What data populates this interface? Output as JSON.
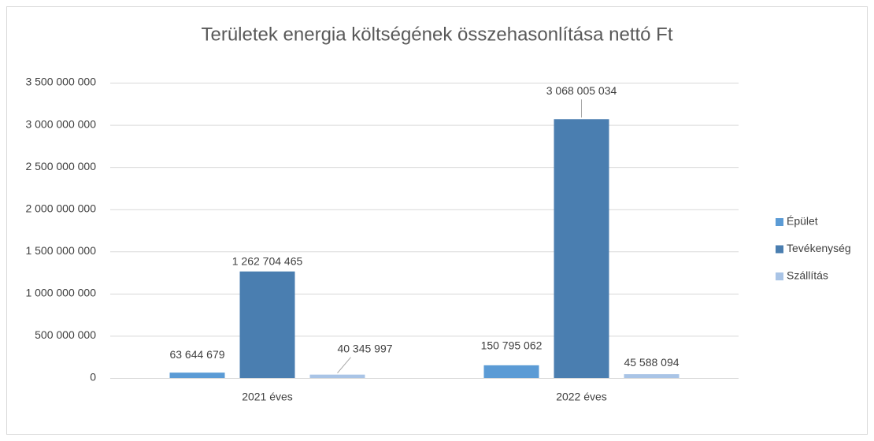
{
  "chart_data": {
    "type": "bar",
    "title": "Területek energia költségének összehasonlítása nettó Ft",
    "categories": [
      "2021 éves",
      "2022 éves"
    ],
    "series": [
      {
        "name": "Épület",
        "color": "#5b9bd5",
        "values": [
          63644679,
          150795062
        ],
        "value_labels": [
          "63 644 679",
          "150 795 062"
        ]
      },
      {
        "name": "Tevékenység",
        "color": "#4a7eb0",
        "values": [
          1262704465,
          3068005034
        ],
        "value_labels": [
          "1 262 704 465",
          "3 068 005 034"
        ]
      },
      {
        "name": "Szállítás",
        "color": "#a9c4e6",
        "values": [
          40345997,
          45588094
        ],
        "value_labels": [
          "40 345 997",
          "45 588 094"
        ]
      }
    ],
    "ylim": [
      0,
      3500000000
    ],
    "yticks": [
      {
        "value": 0,
        "label": "0"
      },
      {
        "value": 500000000,
        "label": "500 000 000"
      },
      {
        "value": 1000000000,
        "label": "1 000 000 000"
      },
      {
        "value": 1500000000,
        "label": "1 500 000 000"
      },
      {
        "value": 2000000000,
        "label": "2 000 000 000"
      },
      {
        "value": 2500000000,
        "label": "2 500 000 000"
      },
      {
        "value": 3000000000,
        "label": "3 000 000 000"
      },
      {
        "value": 3500000000,
        "label": "3 500 000 000"
      }
    ],
    "grid": true,
    "legend": "right"
  }
}
